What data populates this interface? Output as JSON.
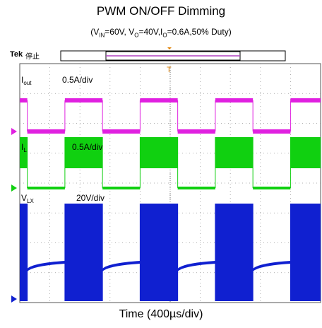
{
  "chart_data": {
    "type": "line",
    "title": "PWM ON/OFF Dimming",
    "subtitle": "(V<sub>IN</sub>=60V, V<sub>O</sub>=40V,I<sub>O</sub>=0.6A,50% Duty)",
    "xlabel": "Time (400µs/div)",
    "scope_brand": "Tek",
    "scope_status": "停止",
    "x_divisions": 10,
    "y_divisions": 8,
    "x_unit": "µs",
    "x_per_div": 400,
    "series": [
      {
        "name": "Iout",
        "label_main": "I",
        "label_sub": "out",
        "scale_label": "0.5A/div",
        "color": "#e020e0",
        "marker": "1",
        "high_value": 0.6,
        "low_value": 0.0,
        "edges_us": [
          0,
          100,
          600,
          1100,
          1600,
          2100,
          2600,
          3100,
          3600,
          4000
        ],
        "start_state": "high"
      },
      {
        "name": "IL",
        "label_main": "I",
        "label_sub": "L",
        "scale_label": "0.5A/div",
        "color": "#10d010",
        "marker": "2",
        "high_value": 0.6,
        "low_value": 0.0,
        "edges_us": [
          0,
          100,
          600,
          1100,
          1600,
          2100,
          2600,
          3100,
          3600,
          4000
        ],
        "start_state": "high"
      },
      {
        "name": "VLX",
        "label_main": "V",
        "label_sub": "LX",
        "scale_label": "20V/div",
        "color": "#1020d0",
        "marker": "3",
        "high_value": 60,
        "low_value": 40,
        "edges_us": [
          0,
          100,
          600,
          1100,
          1600,
          2100,
          2600,
          3100,
          3600,
          4000
        ],
        "start_state": "high"
      }
    ]
  }
}
